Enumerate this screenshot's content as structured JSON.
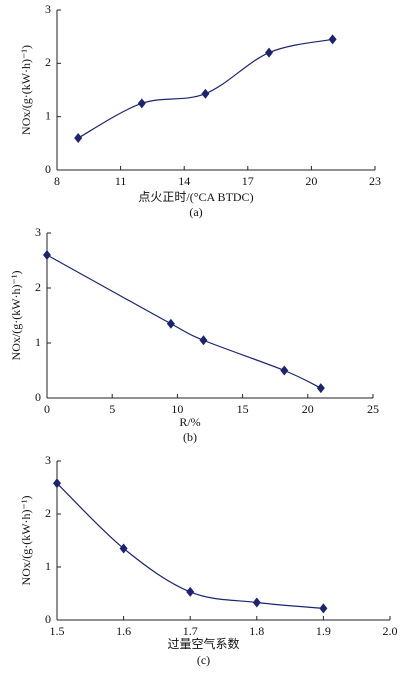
{
  "chart_data": [
    {
      "type": "line",
      "x": [
        9,
        12,
        15,
        18,
        21
      ],
      "values": [
        0.6,
        1.25,
        1.43,
        2.2,
        2.45
      ],
      "color": "#1c2470",
      "xlim": [
        8,
        23
      ],
      "xticks": [
        8,
        11,
        14,
        17,
        20,
        23
      ],
      "ylim": [
        0,
        3
      ],
      "yticks": [
        0,
        1,
        2,
        3
      ],
      "x_label": "点火正时/(°CA BTDC)",
      "y_label": "NOx/(g·(kW·h)⁻¹)",
      "caption": "(a)"
    },
    {
      "type": "line",
      "x": [
        0,
        9.5,
        12,
        18.2,
        21
      ],
      "values": [
        2.6,
        1.35,
        1.05,
        0.5,
        0.18
      ],
      "color": "#1c2470",
      "xlim": [
        0,
        25
      ],
      "xticks": [
        0,
        5,
        10,
        15,
        20,
        25
      ],
      "ylim": [
        0,
        3
      ],
      "yticks": [
        0,
        1,
        2,
        3
      ],
      "x_label": "R/%",
      "y_label": "NOx/(g·(kW·h)⁻¹)",
      "caption": "(b)"
    },
    {
      "type": "line",
      "x": [
        1.5,
        1.6,
        1.7,
        1.8,
        1.9
      ],
      "values": [
        2.58,
        1.35,
        0.53,
        0.33,
        0.22
      ],
      "color": "#1c2470",
      "xlim": [
        1.5,
        2
      ],
      "xticks": [
        1.5,
        1.6,
        1.7,
        1.8,
        1.9,
        {
          "value": 2,
          "label": "2.0"
        }
      ],
      "ylim": [
        0,
        3
      ],
      "yticks": [
        0,
        1,
        2,
        3
      ],
      "x_label": "过量空气系数",
      "y_label": "NOx/(g·(kW·h)⁻¹)",
      "caption": "(c)"
    }
  ]
}
